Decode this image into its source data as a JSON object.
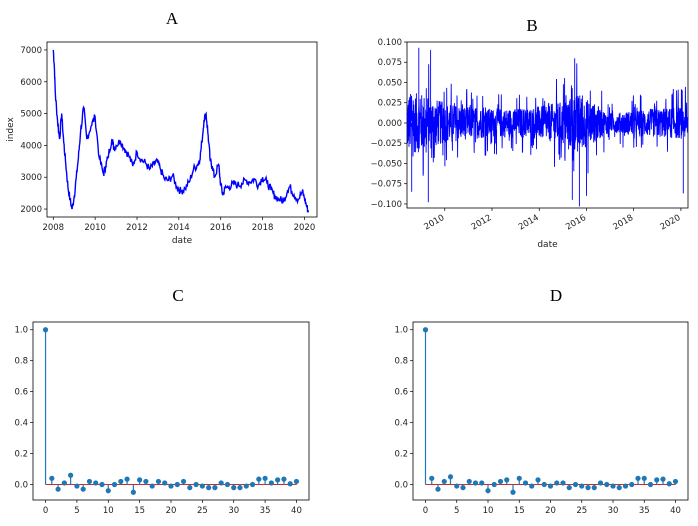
{
  "chart_data": [
    {
      "panel": "A",
      "type": "line",
      "xlabel": "date",
      "ylabel": "index",
      "xlim": [
        2007.7,
        2020.6
      ],
      "ylim": [
        1750,
        7250
      ],
      "xticks": [
        "2008",
        "2010",
        "2012",
        "2014",
        "2016",
        "2018",
        "2020"
      ],
      "yticks": [
        "2000",
        "3000",
        "4000",
        "5000",
        "6000",
        "7000"
      ],
      "color": "#0000ff",
      "series": [
        {
          "x": [
            2008.0,
            2008.05,
            2008.1,
            2008.2,
            2008.3,
            2008.4,
            2008.5,
            2008.6,
            2008.7,
            2008.8,
            2008.9,
            2009.0,
            2009.1,
            2009.2,
            2009.3,
            2009.45,
            2009.6,
            2009.8,
            2010.0,
            2010.2,
            2010.4,
            2010.5,
            2010.6,
            2010.8,
            2010.9,
            2011.0,
            2011.2,
            2011.4,
            2011.6,
            2011.8,
            2012.0,
            2012.2,
            2012.4,
            2012.6,
            2012.8,
            2012.95,
            2013.1,
            2013.3,
            2013.5,
            2013.7,
            2013.9,
            2014.1,
            2014.3,
            2014.5,
            2014.7,
            2014.9,
            2015.0,
            2015.1,
            2015.2,
            2015.3,
            2015.4,
            2015.5,
            2015.6,
            2015.7,
            2015.9,
            2016.0,
            2016.1,
            2016.2,
            2016.4,
            2016.6,
            2016.8,
            2017.0,
            2017.2,
            2017.4,
            2017.6,
            2017.8,
            2018.0,
            2018.2,
            2018.4,
            2018.6,
            2018.8,
            2019.0,
            2019.2,
            2019.3,
            2019.5,
            2019.7,
            2019.9,
            2020.0,
            2020.1,
            2020.2
          ],
          "values": [
            7000,
            6500,
            5600,
            4800,
            4200,
            5000,
            4100,
            3400,
            2700,
            2300,
            2000,
            2400,
            3000,
            3600,
            4400,
            5200,
            4200,
            4600,
            4900,
            3600,
            3100,
            3350,
            3600,
            4200,
            3900,
            4000,
            4150,
            3900,
            3700,
            3350,
            3800,
            3550,
            3450,
            3250,
            3400,
            3500,
            3300,
            2950,
            2900,
            3050,
            2700,
            2550,
            2650,
            2850,
            3250,
            3400,
            3550,
            4100,
            4800,
            5000,
            4300,
            3500,
            3350,
            3000,
            3400,
            2750,
            2450,
            2650,
            2700,
            2800,
            2750,
            2800,
            2900,
            2850,
            2950,
            2750,
            3000,
            2850,
            2600,
            2400,
            2300,
            2250,
            2600,
            2700,
            2450,
            2300,
            2550,
            2350,
            2100,
            1900
          ]
        }
      ]
    },
    {
      "panel": "B",
      "type": "line",
      "xlabel": "date",
      "ylabel": "",
      "xlim": [
        2008.4,
        2020.3
      ],
      "ylim": [
        -0.105,
        0.1
      ],
      "xticks": [
        "2010",
        "2012",
        "2014",
        "2016",
        "2018",
        "2020"
      ],
      "yticks": [
        "0.100",
        "0.075",
        "0.050",
        "0.025",
        "0.000",
        "−0.025",
        "−0.050",
        "−0.075",
        "−0.100"
      ],
      "color": "#0000ff",
      "volatility_profile": [
        {
          "x": 2008.4,
          "amp": 0.085
        },
        {
          "x": 2009.2,
          "amp": 0.08
        },
        {
          "x": 2010.0,
          "amp": 0.055
        },
        {
          "x": 2011.0,
          "amp": 0.045
        },
        {
          "x": 2012.0,
          "amp": 0.04
        },
        {
          "x": 2013.0,
          "amp": 0.04
        },
        {
          "x": 2014.0,
          "amp": 0.045
        },
        {
          "x": 2015.0,
          "amp": 0.06
        },
        {
          "x": 2015.6,
          "amp": 0.08
        },
        {
          "x": 2016.2,
          "amp": 0.06
        },
        {
          "x": 2017.0,
          "amp": 0.025
        },
        {
          "x": 2018.0,
          "amp": 0.035
        },
        {
          "x": 2019.0,
          "amp": 0.04
        },
        {
          "x": 2020.3,
          "amp": 0.045
        }
      ],
      "extremes": [
        {
          "x": 2008.9,
          "y": 0.093
        },
        {
          "x": 2009.4,
          "y": 0.09
        },
        {
          "x": 2008.6,
          "y": -0.085
        },
        {
          "x": 2009.3,
          "y": -0.098
        },
        {
          "x": 2015.5,
          "y": 0.08
        },
        {
          "x": 2015.7,
          "y": -0.103
        },
        {
          "x": 2015.4,
          "y": -0.095
        },
        {
          "x": 2016.0,
          "y": -0.09
        },
        {
          "x": 2020.1,
          "y": -0.087
        }
      ]
    },
    {
      "panel": "C",
      "type": "stem",
      "xlim": [
        -2,
        42
      ],
      "ylim": [
        -0.1,
        1.05
      ],
      "xticks": [
        "0",
        "5",
        "10",
        "15",
        "20",
        "25",
        "30",
        "35",
        "40"
      ],
      "yticks": [
        "1.0",
        "0.8",
        "0.6",
        "0.4",
        "0.2",
        "0.0"
      ],
      "stem_color": "#1f77b4",
      "baseline_color": "#d62728",
      "lags": [
        0,
        1,
        2,
        3,
        4,
        5,
        6,
        7,
        8,
        9,
        10,
        11,
        12,
        13,
        14,
        15,
        16,
        17,
        18,
        19,
        20,
        21,
        22,
        23,
        24,
        25,
        26,
        27,
        28,
        29,
        30,
        31,
        32,
        33,
        34,
        35,
        36,
        37,
        38,
        39,
        40
      ],
      "values": [
        1.0,
        0.04,
        -0.03,
        0.01,
        0.06,
        -0.01,
        -0.03,
        0.02,
        0.01,
        0.0,
        -0.04,
        0.0,
        0.02,
        0.035,
        -0.05,
        0.03,
        0.02,
        -0.01,
        0.02,
        0.01,
        -0.01,
        0.0,
        0.02,
        -0.02,
        0.0,
        -0.01,
        -0.02,
        -0.02,
        0.01,
        0.0,
        -0.02,
        -0.02,
        -0.01,
        0.0,
        0.035,
        0.04,
        0.01,
        0.03,
        0.035,
        0.005,
        0.02
      ]
    },
    {
      "panel": "D",
      "type": "stem",
      "xlim": [
        -2,
        42
      ],
      "ylim": [
        -0.1,
        1.05
      ],
      "xticks": [
        "0",
        "5",
        "10",
        "15",
        "20",
        "25",
        "30",
        "35",
        "40"
      ],
      "yticks": [
        "1.0",
        "0.8",
        "0.6",
        "0.4",
        "0.2",
        "0.0"
      ],
      "stem_color": "#1f77b4",
      "baseline_color": "#d62728",
      "lags": [
        0,
        1,
        2,
        3,
        4,
        5,
        6,
        7,
        8,
        9,
        10,
        11,
        12,
        13,
        14,
        15,
        16,
        17,
        18,
        19,
        20,
        21,
        22,
        23,
        24,
        25,
        26,
        27,
        28,
        29,
        30,
        31,
        32,
        33,
        34,
        35,
        36,
        37,
        38,
        39,
        40
      ],
      "values": [
        1.0,
        0.04,
        -0.03,
        0.02,
        0.05,
        -0.01,
        -0.02,
        0.02,
        0.01,
        0.01,
        -0.04,
        0.0,
        0.02,
        0.03,
        -0.05,
        0.04,
        0.01,
        -0.01,
        0.03,
        0.0,
        -0.01,
        0.01,
        0.01,
        -0.02,
        0.0,
        -0.01,
        -0.02,
        -0.02,
        0.01,
        0.0,
        -0.01,
        -0.02,
        -0.01,
        0.0,
        0.04,
        0.04,
        0.0,
        0.03,
        0.035,
        0.005,
        0.02
      ]
    }
  ]
}
